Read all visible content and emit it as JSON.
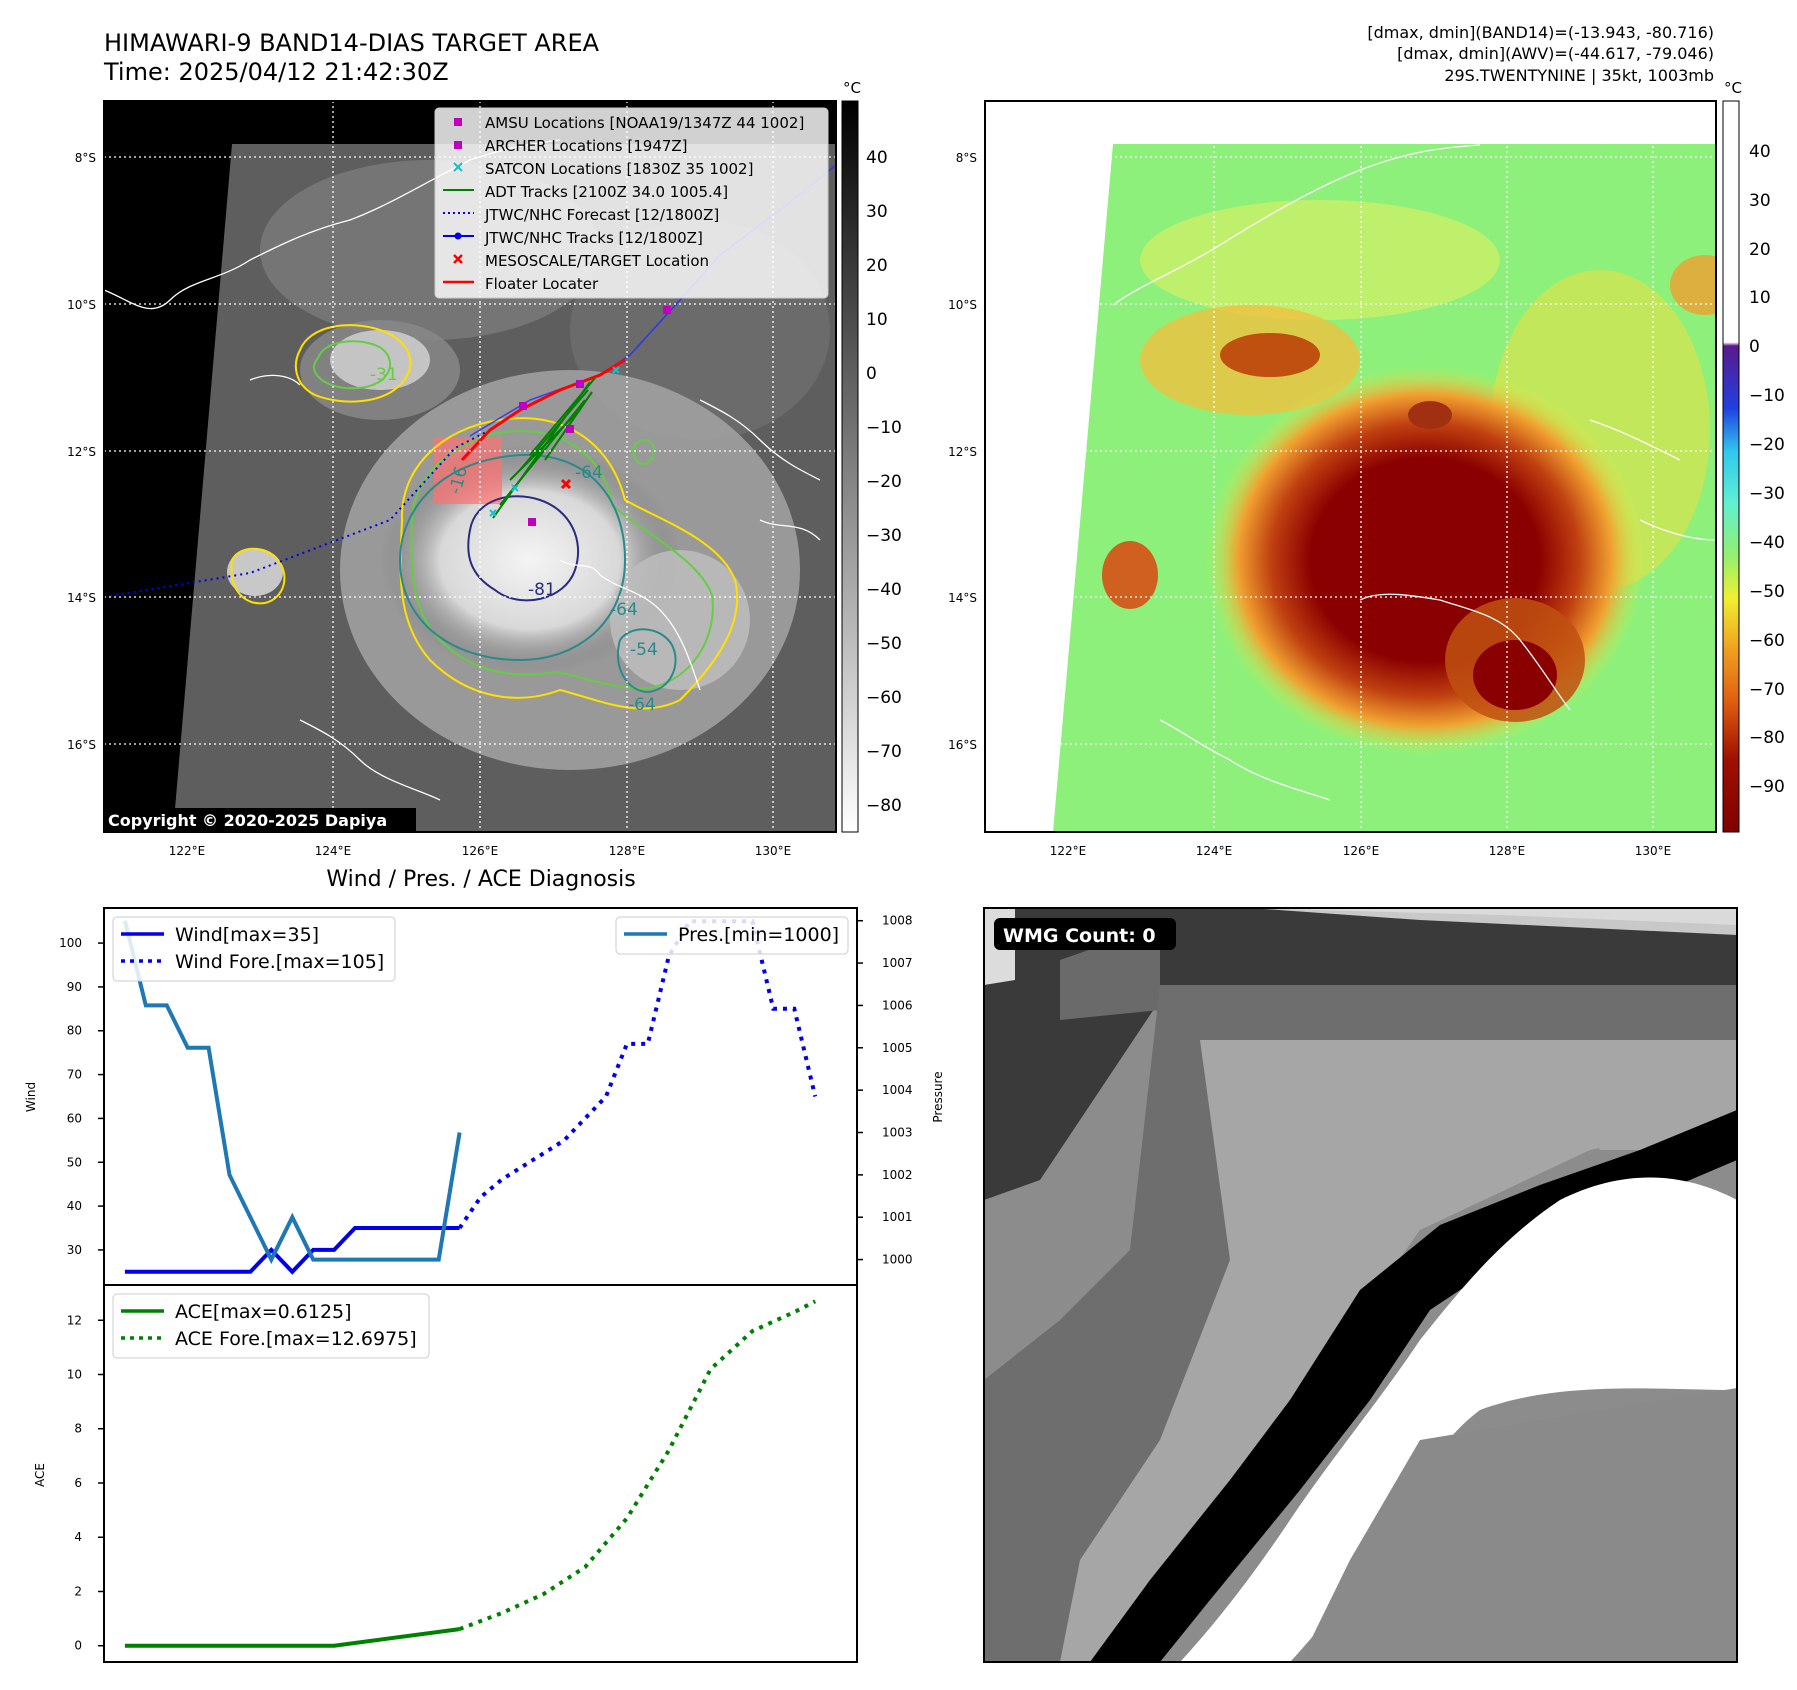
{
  "header": {
    "title_line1": "HIMAWARI-9 BAND14-DIAS TARGET AREA",
    "title_line2": "Time: 2025/04/12 21:42:30Z",
    "stats_line1": "[dmax, dmin](BAND14)=(-13.943, -80.716)",
    "stats_line2": "[dmax, dmin](AWV)=(-44.617, -79.046)",
    "stats_line3": "29S.TWENTYNINE | 35kt, 1003mb"
  },
  "colors": {
    "wind": "#0000ee",
    "pressure": "#1f77b4",
    "ace": "#008000",
    "legend_magenta": "#c000c0",
    "legend_cyan": "#17becf",
    "legend_red": "#ff0000",
    "contour_yellow": "#ffe000",
    "contour_green": "#66cc44",
    "contour_teal": "#2a8a8a",
    "contour_navy": "#2b2b80"
  },
  "map_left": {
    "unit_label": "°C",
    "lat_labels": [
      "8°S",
      "10°S",
      "12°S",
      "14°S",
      "16°S"
    ],
    "lon_labels": [
      "122°E",
      "124°E",
      "126°E",
      "128°E",
      "130°E"
    ],
    "colorbar_ticks": [
      "40",
      "30",
      "20",
      "10",
      "0",
      "−10",
      "−20",
      "−30",
      "−40",
      "−50",
      "−60",
      "−70",
      "−80"
    ],
    "legend": [
      {
        "label": "AMSU Locations [NOAA19/1347Z 44 1002]"
      },
      {
        "label": "ARCHER Locations [1947Z]"
      },
      {
        "label": "SATCON Locations [1830Z 35 1002]"
      },
      {
        "label": "ADT Tracks [2100Z 34.0 1005.4]"
      },
      {
        "label": "JTWC/NHC Forecast [12/1800Z]"
      },
      {
        "label": "JTWC/NHC Tracks [12/1800Z]"
      },
      {
        "label": "MESOSCALE/TARGET Location"
      },
      {
        "label": "Floater Locater"
      }
    ],
    "contour_labels": [
      "-16",
      "-31",
      "-64",
      "-81",
      "-64",
      "-54",
      "-64"
    ],
    "copyright": "Copyright © 2020-2025 Dapiya"
  },
  "map_right": {
    "unit_label": "°C",
    "lat_labels": [
      "8°S",
      "10°S",
      "12°S",
      "14°S",
      "16°S"
    ],
    "lon_labels": [
      "122°E",
      "124°E",
      "126°E",
      "128°E",
      "130°E"
    ],
    "colorbar_ticks": [
      "40",
      "30",
      "20",
      "10",
      "0",
      "−10",
      "−20",
      "−30",
      "−40",
      "−50",
      "−60",
      "−70",
      "−80",
      "−90"
    ]
  },
  "diagnosis": {
    "title": "Wind / Pres. / ACE Diagnosis",
    "wind_ylabel": "Wind",
    "pressure_ylabel": "Pressure",
    "ace_ylabel": "ACE",
    "legend_wind": "Wind[max=35]",
    "legend_wind_fore": "Wind Fore.[max=105]",
    "legend_pres": "Pres.[min=1000]",
    "legend_ace": "ACE[max=0.6125]",
    "legend_ace_fore": "ACE Fore.[max=12.6975]"
  },
  "wmg": {
    "label": "WMG Count: 0"
  },
  "chart_data": [
    {
      "type": "line",
      "title": "Wind / Pres. / ACE Diagnosis",
      "ylabel": "Wind",
      "ylim": [
        22,
        108
      ],
      "yticks": [
        30,
        40,
        50,
        60,
        70,
        80,
        90,
        100
      ],
      "x_range": [
        0,
        36
      ],
      "series": [
        {
          "name": "Wind[max=35]",
          "style": "solid",
          "x": [
            1,
            2,
            3,
            4,
            5,
            6,
            7,
            8,
            9,
            10,
            11,
            12,
            13,
            14,
            15,
            16,
            17
          ],
          "values": [
            25,
            25,
            25,
            25,
            25,
            25,
            25,
            30,
            25,
            30,
            30,
            35,
            35,
            35,
            35,
            35,
            35
          ]
        },
        {
          "name": "Wind Fore.[max=105]",
          "style": "dotted",
          "x": [
            17,
            18,
            19,
            20,
            21,
            22,
            23,
            24,
            25,
            26,
            27,
            28,
            29,
            30,
            31,
            32,
            33,
            34
          ],
          "values": [
            35,
            42,
            46,
            49,
            52,
            55,
            60,
            65,
            77,
            77,
            97,
            105,
            105,
            105,
            105,
            85,
            85,
            65
          ]
        }
      ]
    },
    {
      "type": "line",
      "ylabel": "Pressure",
      "ylim": [
        999.4,
        1008.3
      ],
      "yticks": [
        1000,
        1001,
        1002,
        1003,
        1004,
        1005,
        1006,
        1007,
        1008
      ],
      "x_range": [
        0,
        36
      ],
      "series": [
        {
          "name": "Pres.[min=1000]",
          "style": "solid",
          "x": [
            1,
            2,
            3,
            4,
            5,
            6,
            7,
            8,
            9,
            10,
            11,
            12,
            13,
            14,
            15,
            16,
            17
          ],
          "values": [
            1008,
            1006,
            1006,
            1005,
            1005,
            1002,
            1001,
            1000,
            1001,
            1000,
            1000,
            1000,
            1000,
            1000,
            1000,
            1000,
            1003
          ]
        }
      ]
    },
    {
      "type": "line",
      "ylabel": "ACE",
      "ylim": [
        -0.6,
        13.3
      ],
      "yticks": [
        0,
        2,
        4,
        6,
        8,
        10,
        12
      ],
      "x_range": [
        0,
        36
      ],
      "series": [
        {
          "name": "ACE[max=0.6125]",
          "style": "solid",
          "x": [
            1,
            11,
            17
          ],
          "values": [
            0,
            0,
            0.6125
          ]
        },
        {
          "name": "ACE Fore.[max=12.6975]",
          "style": "dotted",
          "x": [
            17,
            19,
            21,
            23,
            25,
            27,
            29,
            31,
            33,
            34
          ],
          "values": [
            0.6125,
            1.2,
            1.9,
            2.9,
            4.7,
            7.2,
            10.2,
            11.6,
            12.3,
            12.6975
          ]
        }
      ]
    }
  ]
}
